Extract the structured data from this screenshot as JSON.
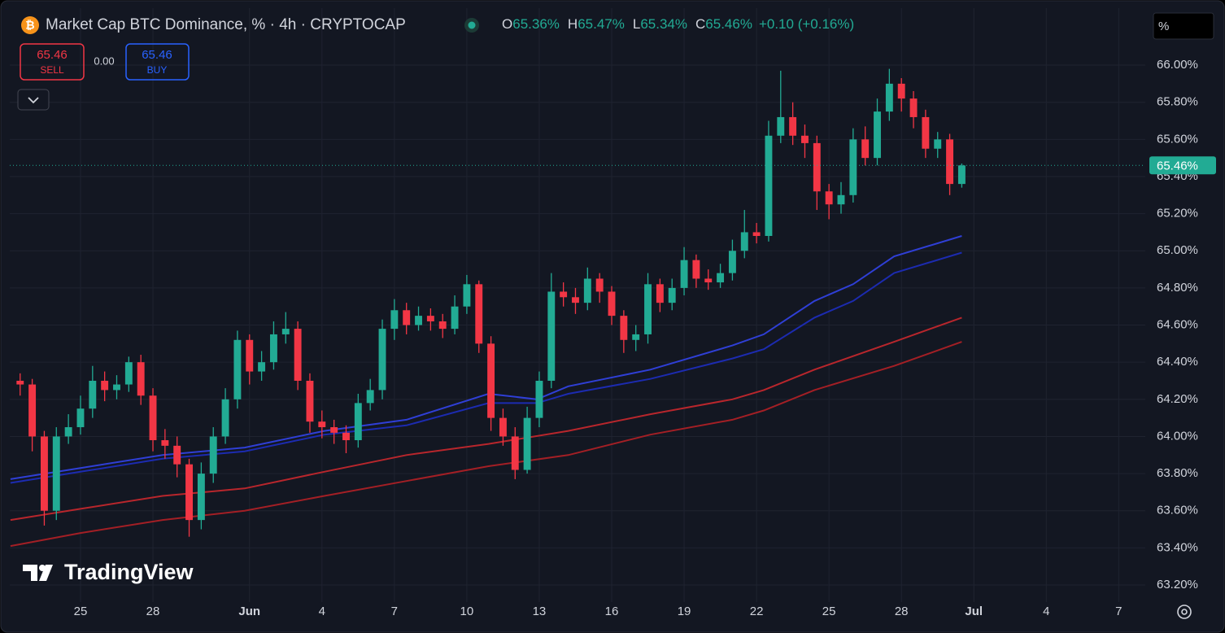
{
  "header": {
    "title": "Market Cap BTC Dominance, % · 4h · CRYPTOCAP",
    "ohlc": [
      {
        "label": "O",
        "value": "65.36%"
      },
      {
        "label": "H",
        "value": "65.47%"
      },
      {
        "label": "L",
        "value": "65.34%"
      },
      {
        "label": "C",
        "value": "65.46%"
      }
    ],
    "change": "+0.10 (+0.16%)"
  },
  "trade": {
    "sell_price": "65.46",
    "sell": "SELL",
    "spread": "0.00",
    "buy_price": "65.46",
    "buy": "BUY"
  },
  "scale_button": "%",
  "logo": "TradingView",
  "chart_data": {
    "type": "candlestick",
    "up_color": "#22ab94",
    "down_color": "#f23645",
    "grid": true,
    "x": [
      -2.5,
      -2,
      -1.5,
      -1,
      -0.5,
      0,
      0.5,
      1,
      1.5,
      2,
      2.5,
      3,
      3.5,
      4,
      4.5,
      5,
      5.5,
      6,
      6.5,
      7,
      7.5,
      8,
      8.5,
      9,
      9.5,
      10,
      10.5,
      11,
      11.5,
      12,
      12.5,
      13,
      13.5,
      14,
      14.5,
      15,
      15.5,
      16,
      16.5,
      17,
      17.5,
      18,
      18.5,
      19,
      19.5,
      20,
      20.5,
      21,
      21.5,
      22,
      22.5,
      23,
      23.5,
      24,
      24.5,
      25,
      25.5,
      26,
      26.5,
      27,
      27.5,
      28,
      28.5,
      29,
      29.5,
      30,
      30.5,
      31,
      31.5,
      32,
      32.5,
      33,
      33.5,
      34,
      34.5,
      35,
      35.5,
      36,
      36.5
    ],
    "open": [
      64.3,
      64.28,
      64.0,
      63.6,
      64.0,
      64.05,
      64.15,
      64.3,
      64.25,
      64.28,
      64.4,
      64.22,
      63.98,
      63.95,
      63.85,
      63.55,
      63.8,
      64.0,
      64.2,
      64.52,
      64.35,
      64.4,
      64.55,
      64.58,
      64.3,
      64.08,
      64.05,
      64.02,
      63.98,
      64.18,
      64.25,
      64.58,
      64.68,
      64.6,
      64.65,
      64.62,
      64.58,
      64.7,
      64.82,
      64.5,
      64.1,
      64.0,
      63.82,
      64.1,
      64.3,
      64.78,
      64.75,
      64.72,
      64.85,
      64.78,
      64.65,
      64.52,
      64.55,
      64.82,
      64.72,
      64.8,
      64.95,
      64.85,
      64.83,
      64.88,
      65.0,
      65.1,
      65.08,
      65.62,
      65.72,
      65.62,
      65.58,
      65.32,
      65.25,
      65.3,
      65.6,
      65.5,
      65.75,
      65.9,
      65.82,
      65.72,
      65.55,
      65.6,
      65.36
    ],
    "high": [
      64.34,
      64.31,
      64.03,
      64.05,
      64.12,
      64.22,
      64.38,
      64.35,
      64.33,
      64.43,
      64.44,
      64.26,
      64.04,
      64.0,
      63.88,
      63.86,
      64.05,
      64.26,
      64.57,
      64.55,
      64.46,
      64.62,
      64.67,
      64.62,
      64.34,
      64.14,
      64.09,
      64.06,
      64.23,
      64.31,
      64.63,
      64.74,
      64.72,
      64.7,
      64.69,
      64.66,
      64.76,
      64.87,
      64.84,
      64.54,
      64.15,
      64.05,
      64.16,
      64.35,
      64.88,
      64.83,
      64.8,
      64.91,
      64.88,
      64.81,
      64.68,
      64.6,
      64.88,
      64.85,
      64.85,
      65.02,
      64.98,
      64.9,
      64.93,
      65.06,
      65.22,
      65.15,
      65.7,
      65.97,
      65.8,
      65.68,
      65.62,
      65.36,
      65.37,
      65.66,
      65.67,
      65.82,
      65.98,
      65.93,
      65.86,
      65.76,
      65.64,
      65.63,
      65.47
    ],
    "low": [
      64.22,
      63.92,
      63.52,
      63.55,
      63.96,
      64.01,
      64.1,
      64.19,
      64.2,
      64.24,
      64.17,
      63.92,
      63.88,
      63.78,
      63.46,
      63.5,
      63.75,
      63.96,
      64.15,
      64.28,
      64.3,
      64.36,
      64.5,
      64.25,
      64.02,
      63.99,
      63.96,
      63.91,
      63.94,
      64.14,
      64.2,
      64.52,
      64.55,
      64.57,
      64.57,
      64.53,
      64.55,
      64.66,
      64.45,
      64.03,
      63.95,
      63.77,
      63.8,
      64.05,
      64.26,
      64.7,
      64.66,
      64.68,
      64.72,
      64.6,
      64.45,
      64.46,
      64.5,
      64.67,
      64.68,
      64.76,
      64.8,
      64.79,
      64.8,
      64.84,
      64.96,
      65.04,
      65.05,
      65.58,
      65.57,
      65.5,
      65.22,
      65.17,
      65.2,
      65.26,
      65.46,
      65.46,
      65.7,
      65.75,
      65.66,
      65.5,
      65.5,
      65.3,
      65.34
    ],
    "close": [
      64.28,
      64.0,
      63.6,
      64.0,
      64.05,
      64.15,
      64.3,
      64.25,
      64.28,
      64.4,
      64.22,
      63.98,
      63.95,
      63.85,
      63.55,
      63.8,
      64.0,
      64.2,
      64.52,
      64.35,
      64.4,
      64.55,
      64.58,
      64.3,
      64.08,
      64.05,
      64.02,
      63.98,
      64.18,
      64.25,
      64.58,
      64.68,
      64.6,
      64.65,
      64.62,
      64.58,
      64.7,
      64.82,
      64.5,
      64.1,
      64.0,
      63.82,
      64.1,
      64.3,
      64.78,
      64.75,
      64.72,
      64.85,
      64.78,
      64.65,
      64.52,
      64.55,
      64.82,
      64.72,
      64.8,
      64.95,
      64.85,
      64.83,
      64.88,
      65.0,
      65.1,
      65.08,
      65.62,
      65.72,
      65.62,
      65.58,
      65.32,
      65.25,
      65.3,
      65.6,
      65.5,
      65.75,
      65.9,
      65.82,
      65.72,
      65.55,
      65.6,
      65.36,
      65.46
    ],
    "series": [
      {
        "color": "#2f3fd6",
        "x": [
          -2.9,
          0,
          3.4,
          6.8,
          10.1,
          13.5,
          16.9,
          18.9,
          20.2,
          23.6,
          27,
          28.3,
          30.4,
          32,
          33.7,
          36.5
        ],
        "values": [
          63.77,
          63.83,
          63.9,
          63.94,
          64.03,
          64.09,
          64.23,
          64.2,
          64.27,
          64.36,
          64.49,
          64.55,
          64.73,
          64.82,
          64.97,
          65.08
        ]
      },
      {
        "color": "#1c2bb0",
        "x": [
          -2.9,
          0,
          3.4,
          6.8,
          10.1,
          13.5,
          16.9,
          18.9,
          20.2,
          23.6,
          27,
          28.3,
          30.4,
          32,
          33.7,
          36.5
        ],
        "values": [
          63.75,
          63.81,
          63.88,
          63.92,
          64.01,
          64.06,
          64.18,
          64.18,
          64.23,
          64.31,
          64.42,
          64.47,
          64.64,
          64.73,
          64.88,
          64.99
        ]
      },
      {
        "color": "#b8262c",
        "x": [
          -2.9,
          0,
          3.4,
          6.8,
          10.1,
          13.5,
          16.9,
          20.2,
          23.6,
          27,
          28.3,
          30.4,
          33.7,
          36.5
        ],
        "values": [
          63.55,
          63.61,
          63.68,
          63.72,
          63.81,
          63.9,
          63.96,
          64.03,
          64.12,
          64.2,
          64.25,
          64.36,
          64.51,
          64.64
        ]
      },
      {
        "color": "#a31f25",
        "x": [
          -2.9,
          0,
          3.4,
          6.8,
          10.1,
          13.5,
          16.9,
          20.2,
          23.6,
          27,
          28.3,
          30.4,
          33.7,
          36.5
        ],
        "values": [
          63.41,
          63.48,
          63.55,
          63.6,
          63.68,
          63.76,
          63.84,
          63.9,
          64.01,
          64.09,
          64.14,
          64.25,
          64.38,
          64.51
        ]
      }
    ],
    "last_price": {
      "value": 65.46,
      "label": "65.46%"
    },
    "xlim": [
      -2.93,
      44.1
    ],
    "xticks": [
      {
        "value": 0,
        "label": "25"
      },
      {
        "value": 3,
        "label": "28"
      },
      {
        "value": 7,
        "label": "Jun"
      },
      {
        "value": 10,
        "label": "4"
      },
      {
        "value": 13,
        "label": "7"
      },
      {
        "value": 16,
        "label": "10"
      },
      {
        "value": 19,
        "label": "13"
      },
      {
        "value": 22,
        "label": "16"
      },
      {
        "value": 25,
        "label": "19"
      },
      {
        "value": 28,
        "label": "22"
      },
      {
        "value": 31,
        "label": "25"
      },
      {
        "value": 34,
        "label": "28"
      },
      {
        "value": 37,
        "label": "Jul"
      },
      {
        "value": 40,
        "label": "4"
      },
      {
        "value": 43,
        "label": "7"
      }
    ],
    "ylim": [
      63.108,
      66.307
    ],
    "yticks": [
      {
        "value": 63.2,
        "label": "63.20%"
      },
      {
        "value": 63.4,
        "label": "63.40%"
      },
      {
        "value": 63.6,
        "label": "63.60%"
      },
      {
        "value": 63.8,
        "label": "63.80%"
      },
      {
        "value": 64.0,
        "label": "64.00%"
      },
      {
        "value": 64.2,
        "label": "64.20%"
      },
      {
        "value": 64.4,
        "label": "64.40%"
      },
      {
        "value": 64.6,
        "label": "64.60%"
      },
      {
        "value": 64.8,
        "label": "64.80%"
      },
      {
        "value": 65.0,
        "label": "65.00%"
      },
      {
        "value": 65.2,
        "label": "65.20%"
      },
      {
        "value": 65.4,
        "label": "65.40%"
      },
      {
        "value": 65.6,
        "label": "65.60%"
      },
      {
        "value": 65.8,
        "label": "65.80%"
      },
      {
        "value": 66.0,
        "label": "66.00%"
      }
    ]
  }
}
